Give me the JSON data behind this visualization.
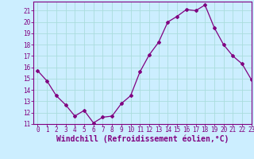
{
  "x": [
    0,
    1,
    2,
    3,
    4,
    5,
    6,
    7,
    8,
    9,
    10,
    11,
    12,
    13,
    14,
    15,
    16,
    17,
    18,
    19,
    20,
    21,
    22,
    23
  ],
  "y": [
    15.7,
    14.8,
    13.5,
    12.7,
    11.7,
    12.2,
    11.1,
    11.6,
    11.7,
    12.8,
    13.5,
    15.6,
    17.1,
    18.2,
    20.0,
    20.5,
    21.1,
    21.0,
    21.5,
    19.5,
    18.0,
    17.0,
    16.3,
    14.9
  ],
  "line_color": "#800080",
  "marker": "D",
  "marker_size": 2.0,
  "bg_color": "#cceeff",
  "grid_color": "#aadddd",
  "xlabel": "Windchill (Refroidissement éolien,°C)",
  "ylim": [
    11,
    21.8
  ],
  "xlim": [
    -0.5,
    23
  ],
  "yticks": [
    11,
    12,
    13,
    14,
    15,
    16,
    17,
    18,
    19,
    20,
    21
  ],
  "xticks": [
    0,
    1,
    2,
    3,
    4,
    5,
    6,
    7,
    8,
    9,
    10,
    11,
    12,
    13,
    14,
    15,
    16,
    17,
    18,
    19,
    20,
    21,
    22,
    23
  ],
  "tick_label_fontsize": 5.5,
  "xlabel_fontsize": 7.0,
  "linewidth": 0.9
}
